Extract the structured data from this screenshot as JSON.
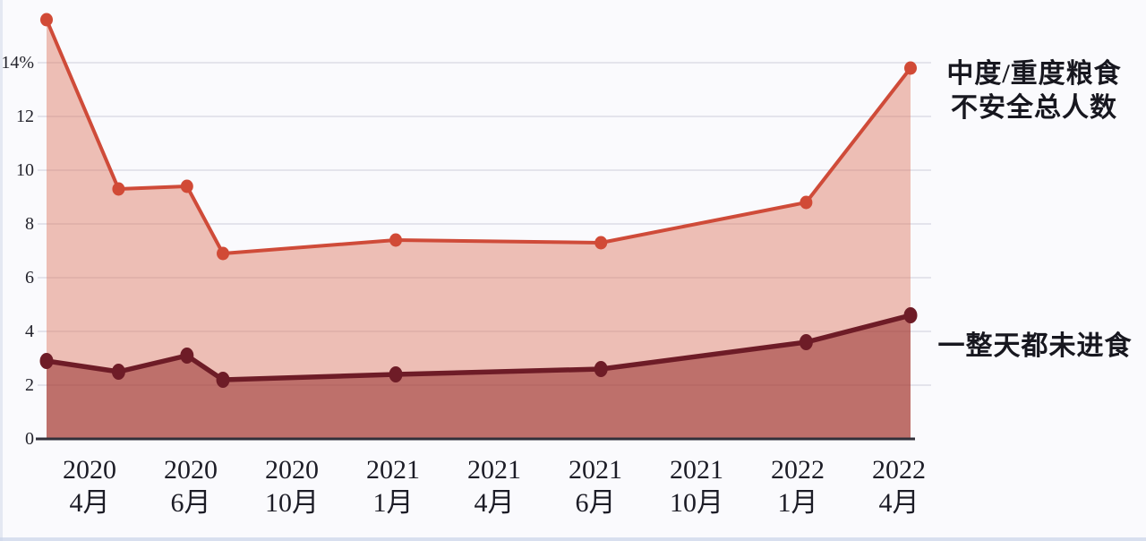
{
  "page": {
    "background": "#fafafd"
  },
  "chart_data": {
    "type": "area",
    "title": "",
    "xlabel": "",
    "ylabel": "",
    "legend_position": "right-of-lines",
    "grid": true,
    "y_axis": {
      "unit": "%",
      "min": 0,
      "max": 14,
      "tick_step": 2,
      "ticks": [
        {
          "label": "14%",
          "value": 14
        },
        {
          "label": "12",
          "value": 12
        },
        {
          "label": "10",
          "value": 10
        },
        {
          "label": "8",
          "value": 8
        },
        {
          "label": "6",
          "value": 6
        },
        {
          "label": "4",
          "value": 4
        },
        {
          "label": "2",
          "value": 2
        },
        {
          "label": "0",
          "value": 0
        }
      ]
    },
    "x_ticks": [
      {
        "year": "2020",
        "month": "4月"
      },
      {
        "year": "2020",
        "month": "6月"
      },
      {
        "year": "2020",
        "month": "10月"
      },
      {
        "year": "2021",
        "month": "1月"
      },
      {
        "year": "2021",
        "month": "4月"
      },
      {
        "year": "2021",
        "month": "6月"
      },
      {
        "year": "2021",
        "month": "10月"
      },
      {
        "year": "2022",
        "month": "1月"
      },
      {
        "year": "2022",
        "month": "4月"
      }
    ],
    "x_scale_note": "survey points positioned by months after 2020-04",
    "series": [
      {
        "name": "中度/重度粮食不安全总人数",
        "color": "#cf4b39",
        "marker_color": "#d14a36",
        "fill": "rgba(222,118,94,0.45)",
        "points": [
          {
            "m": 0,
            "v": 15.6
          },
          {
            "m": 2,
            "v": 9.3
          },
          {
            "m": 3.9,
            "v": 9.4
          },
          {
            "m": 4.9,
            "v": 6.9
          },
          {
            "m": 9.7,
            "v": 7.4
          },
          {
            "m": 15.4,
            "v": 7.3
          },
          {
            "m": 21.1,
            "v": 8.8
          },
          {
            "m": 24,
            "v": 13.8
          }
        ]
      },
      {
        "name": "一整天都未进食",
        "color": "#6e1c27",
        "marker_color": "#6e1c27",
        "fill": "rgba(139,26,23,0.47)",
        "points": [
          {
            "m": 0,
            "v": 2.9
          },
          {
            "m": 2,
            "v": 2.5
          },
          {
            "m": 3.9,
            "v": 3.1
          },
          {
            "m": 4.9,
            "v": 2.2
          },
          {
            "m": 9.7,
            "v": 2.4
          },
          {
            "m": 15.4,
            "v": 2.6
          },
          {
            "m": 21.1,
            "v": 3.6
          },
          {
            "m": 24,
            "v": 4.6
          }
        ]
      }
    ],
    "annotations": [
      {
        "series": "moderate-severe",
        "lines": [
          "中度/重度粮食",
          "不安全总人数"
        ]
      },
      {
        "series": "whole-day-no-food",
        "lines": [
          "一整天都未进食"
        ]
      }
    ]
  }
}
